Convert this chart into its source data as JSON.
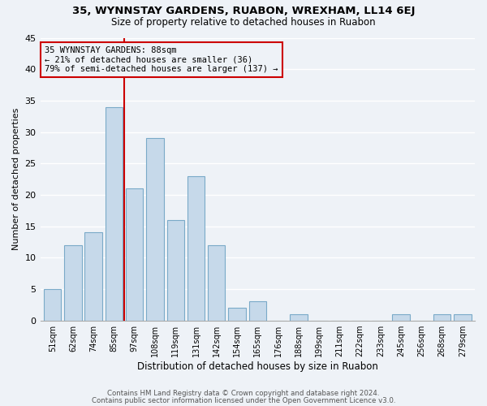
{
  "title": "35, WYNNSTAY GARDENS, RUABON, WREXHAM, LL14 6EJ",
  "subtitle": "Size of property relative to detached houses in Ruabon",
  "xlabel": "Distribution of detached houses by size in Ruabon",
  "ylabel": "Number of detached properties",
  "bin_labels": [
    "51sqm",
    "62sqm",
    "74sqm",
    "85sqm",
    "97sqm",
    "108sqm",
    "119sqm",
    "131sqm",
    "142sqm",
    "154sqm",
    "165sqm",
    "176sqm",
    "188sqm",
    "199sqm",
    "211sqm",
    "222sqm",
    "233sqm",
    "245sqm",
    "256sqm",
    "268sqm",
    "279sqm"
  ],
  "bar_heights": [
    5,
    12,
    14,
    34,
    21,
    29,
    16,
    23,
    12,
    2,
    3,
    0,
    1,
    0,
    0,
    0,
    0,
    1,
    0,
    1,
    1
  ],
  "bar_color": "#c6d9ea",
  "bar_edge_color": "#7aaac8",
  "vline_color": "#cc0000",
  "annotation_title": "35 WYNNSTAY GARDENS: 88sqm",
  "annotation_line1": "← 21% of detached houses are smaller (36)",
  "annotation_line2": "79% of semi-detached houses are larger (137) →",
  "annotation_box_color": "#cc0000",
  "ylim": [
    0,
    45
  ],
  "yticks": [
    0,
    5,
    10,
    15,
    20,
    25,
    30,
    35,
    40,
    45
  ],
  "footer1": "Contains HM Land Registry data © Crown copyright and database right 2024.",
  "footer2": "Contains public sector information licensed under the Open Government Licence v3.0.",
  "bg_color": "#eef2f7"
}
